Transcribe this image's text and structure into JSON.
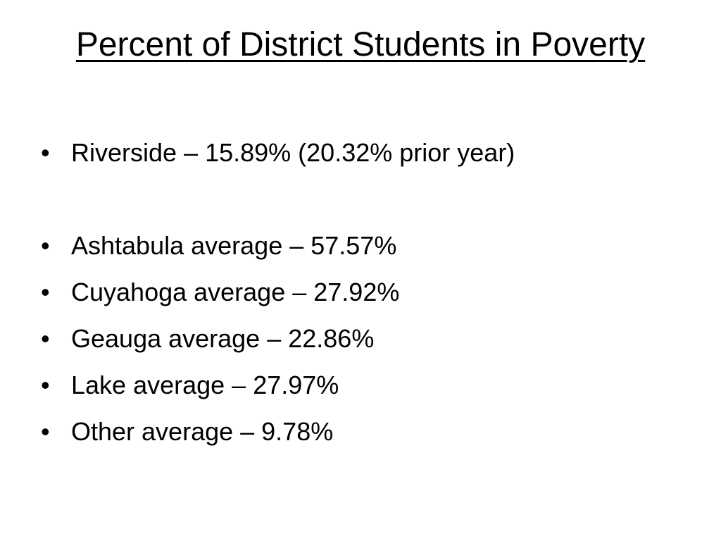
{
  "slide": {
    "title": "Percent of District Students in Poverty",
    "bullet_glyph": "•",
    "bullets": [
      "Riverside – 15.89% (20.32% prior year)",
      "Ashtabula average – 57.57%",
      "Cuyahoga average – 27.92%",
      "Geauga average – 22.86%",
      "Lake average – 27.97%",
      "Other average – 9.78%"
    ]
  }
}
